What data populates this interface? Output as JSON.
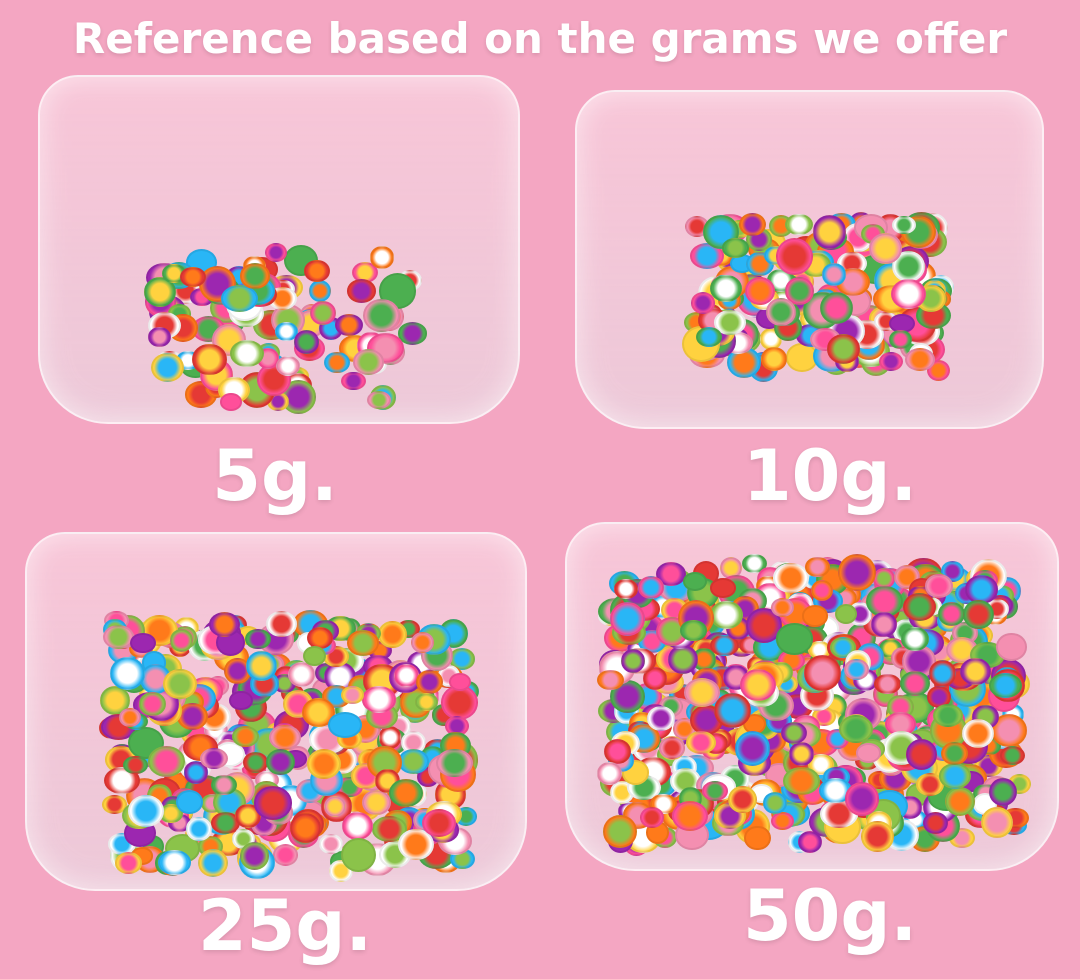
{
  "title": "Reference based on the grams we offer",
  "colors": {
    "background": "#f4a6c2",
    "text": "#ffffff"
  },
  "panels": [
    {
      "label": "5g.",
      "density": 90
    },
    {
      "label": "10g.",
      "density": 160
    },
    {
      "label": "25g.",
      "density": 320
    },
    {
      "label": "50g.",
      "density": 520
    }
  ],
  "confetti_colors": [
    "#ff4f9a",
    "#ffd23f",
    "#ff7a1a",
    "#4caf50",
    "#e53935",
    "#ffffff",
    "#9c27b0",
    "#f48fb1",
    "#8bc34a",
    "#29b6f6"
  ]
}
